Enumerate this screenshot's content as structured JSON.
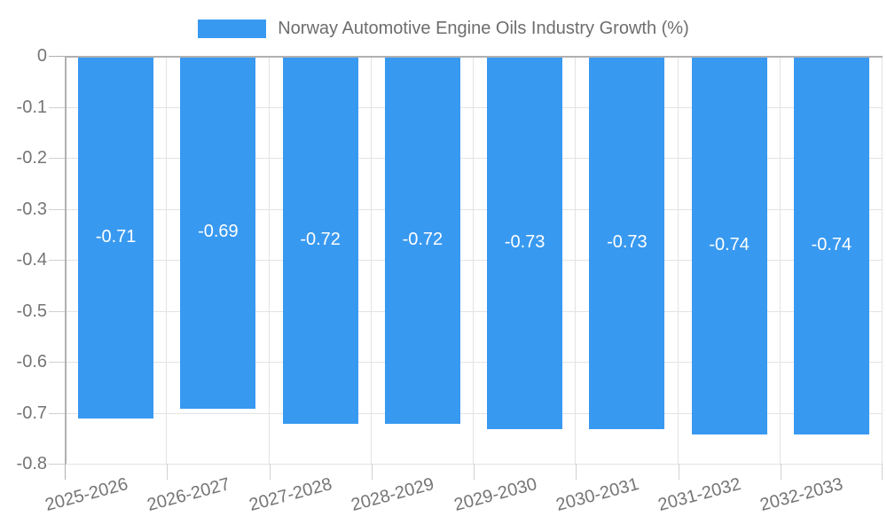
{
  "legend": {
    "label": "Norway Automotive Engine Oils Industry Growth (%)"
  },
  "chart_data": {
    "type": "bar",
    "title": "Norway Automotive Engine Oils Industry Growth (%)",
    "categories": [
      "2025-2026",
      "2026-2027",
      "2027-2028",
      "2028-2029",
      "2029-2030",
      "2030-2031",
      "2031-2032",
      "2032-2033"
    ],
    "values": [
      -0.71,
      -0.69,
      -0.72,
      -0.72,
      -0.73,
      -0.73,
      -0.74,
      -0.74
    ],
    "bar_labels": [
      "-0.71",
      "-0.69",
      "-0.72",
      "-0.72",
      "-0.73",
      "-0.73",
      "-0.74",
      "-0.74"
    ],
    "xlabel": "",
    "ylabel": "",
    "ylim": [
      -0.8,
      0
    ],
    "ytick_labels": [
      "0",
      "-0.1",
      "-0.2",
      "-0.3",
      "-0.4",
      "-0.5",
      "-0.6",
      "-0.7",
      "-0.8"
    ],
    "grid": true,
    "legend_position": "top-center",
    "colors": {
      "bar": "#3899F0",
      "grid": "#e3e3e3",
      "axis": "#b0b0b0",
      "tick": "#d0d0d0",
      "axis_text": "#757575",
      "legend_text": "#6d6d6d",
      "bar_label_text": "#ffffff",
      "background": "#ffffff"
    }
  }
}
